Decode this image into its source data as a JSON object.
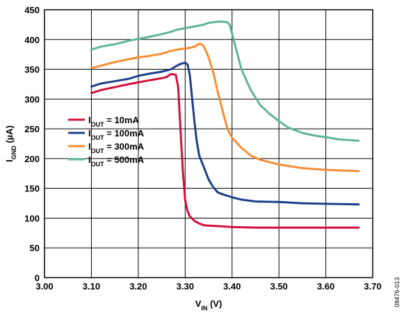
{
  "figure_id": "08476-013",
  "chart_data": {
    "type": "line",
    "xlabel": {
      "main": "V",
      "sub": "IN",
      "unit": " (V)"
    },
    "ylabel": {
      "main": "I",
      "sub": "GND",
      "unit": " (µA)"
    },
    "xlim": [
      3.0,
      3.7
    ],
    "ylim": [
      0,
      450
    ],
    "x_ticks": [
      "3.00",
      "3.10",
      "3.20",
      "3.30",
      "3.40",
      "3.50",
      "3.60",
      "3.70"
    ],
    "y_ticks": [
      "0",
      "50",
      "100",
      "150",
      "200",
      "250",
      "300",
      "350",
      "400",
      "450"
    ],
    "grid": true,
    "legend_position": "center-left",
    "series": [
      {
        "name": "I_OUT = 10mA",
        "label": {
          "main": "I",
          "sub": "OUT",
          "rest": " = 10mA"
        },
        "color": "#d0103a",
        "points": [
          [
            3.1,
            310
          ],
          [
            3.12,
            315
          ],
          [
            3.15,
            320
          ],
          [
            3.18,
            325
          ],
          [
            3.2,
            328
          ],
          [
            3.22,
            331
          ],
          [
            3.25,
            335
          ],
          [
            3.26,
            337
          ],
          [
            3.27,
            342
          ],
          [
            3.28,
            341
          ],
          [
            3.285,
            320
          ],
          [
            3.29,
            250
          ],
          [
            3.295,
            180
          ],
          [
            3.3,
            130
          ],
          [
            3.305,
            112
          ],
          [
            3.31,
            103
          ],
          [
            3.32,
            95
          ],
          [
            3.33,
            91
          ],
          [
            3.34,
            88
          ],
          [
            3.36,
            87
          ],
          [
            3.38,
            86
          ],
          [
            3.4,
            85
          ],
          [
            3.45,
            84
          ],
          [
            3.5,
            84
          ],
          [
            3.6,
            84
          ],
          [
            3.67,
            84
          ]
        ]
      },
      {
        "name": "I_OUT = 100mA",
        "label": {
          "main": "I",
          "sub": "OUT",
          "rest": " = 100mA"
        },
        "color": "#1b3f8b",
        "points": [
          [
            3.1,
            321
          ],
          [
            3.12,
            326
          ],
          [
            3.15,
            330
          ],
          [
            3.18,
            334
          ],
          [
            3.2,
            339
          ],
          [
            3.22,
            342
          ],
          [
            3.25,
            346
          ],
          [
            3.27,
            350
          ],
          [
            3.28,
            355
          ],
          [
            3.29,
            359
          ],
          [
            3.3,
            361
          ],
          [
            3.305,
            358
          ],
          [
            3.31,
            340
          ],
          [
            3.315,
            300
          ],
          [
            3.32,
            260
          ],
          [
            3.325,
            228
          ],
          [
            3.33,
            205
          ],
          [
            3.34,
            185
          ],
          [
            3.35,
            165
          ],
          [
            3.36,
            152
          ],
          [
            3.37,
            143
          ],
          [
            3.38,
            140
          ],
          [
            3.4,
            135
          ],
          [
            3.42,
            131
          ],
          [
            3.45,
            128
          ],
          [
            3.5,
            127
          ],
          [
            3.55,
            125
          ],
          [
            3.6,
            124
          ],
          [
            3.67,
            123
          ]
        ]
      },
      {
        "name": "I_OUT = 300mA",
        "label": {
          "main": "I",
          "sub": "OUT",
          "rest": " = 300mA"
        },
        "color": "#f78d32",
        "points": [
          [
            3.1,
            352
          ],
          [
            3.12,
            356
          ],
          [
            3.15,
            362
          ],
          [
            3.18,
            367
          ],
          [
            3.2,
            370
          ],
          [
            3.22,
            372
          ],
          [
            3.25,
            376
          ],
          [
            3.27,
            381
          ],
          [
            3.29,
            384
          ],
          [
            3.31,
            386
          ],
          [
            3.32,
            388
          ],
          [
            3.33,
            393
          ],
          [
            3.335,
            392
          ],
          [
            3.34,
            388
          ],
          [
            3.35,
            370
          ],
          [
            3.36,
            345
          ],
          [
            3.37,
            310
          ],
          [
            3.38,
            280
          ],
          [
            3.39,
            250
          ],
          [
            3.4,
            235
          ],
          [
            3.42,
            218
          ],
          [
            3.44,
            205
          ],
          [
            3.46,
            198
          ],
          [
            3.5,
            190
          ],
          [
            3.55,
            184
          ],
          [
            3.6,
            181
          ],
          [
            3.67,
            179
          ]
        ]
      },
      {
        "name": "I_OUT = 500mA",
        "label": {
          "main": "I",
          "sub": "OUT",
          "rest": " = 500mA"
        },
        "color": "#5fb693",
        "points": [
          [
            3.1,
            383
          ],
          [
            3.12,
            388
          ],
          [
            3.15,
            392
          ],
          [
            3.18,
            398
          ],
          [
            3.2,
            401
          ],
          [
            3.22,
            404
          ],
          [
            3.25,
            409
          ],
          [
            3.27,
            413
          ],
          [
            3.28,
            416
          ],
          [
            3.3,
            419
          ],
          [
            3.32,
            422
          ],
          [
            3.34,
            425
          ],
          [
            3.35,
            428
          ],
          [
            3.37,
            430
          ],
          [
            3.38,
            430
          ],
          [
            3.39,
            429
          ],
          [
            3.395,
            425
          ],
          [
            3.4,
            410
          ],
          [
            3.41,
            380
          ],
          [
            3.42,
            350
          ],
          [
            3.44,
            315
          ],
          [
            3.46,
            290
          ],
          [
            3.48,
            275
          ],
          [
            3.5,
            263
          ],
          [
            3.52,
            252
          ],
          [
            3.55,
            243
          ],
          [
            3.58,
            238
          ],
          [
            3.6,
            236
          ],
          [
            3.63,
            232
          ],
          [
            3.67,
            230
          ]
        ]
      }
    ]
  }
}
